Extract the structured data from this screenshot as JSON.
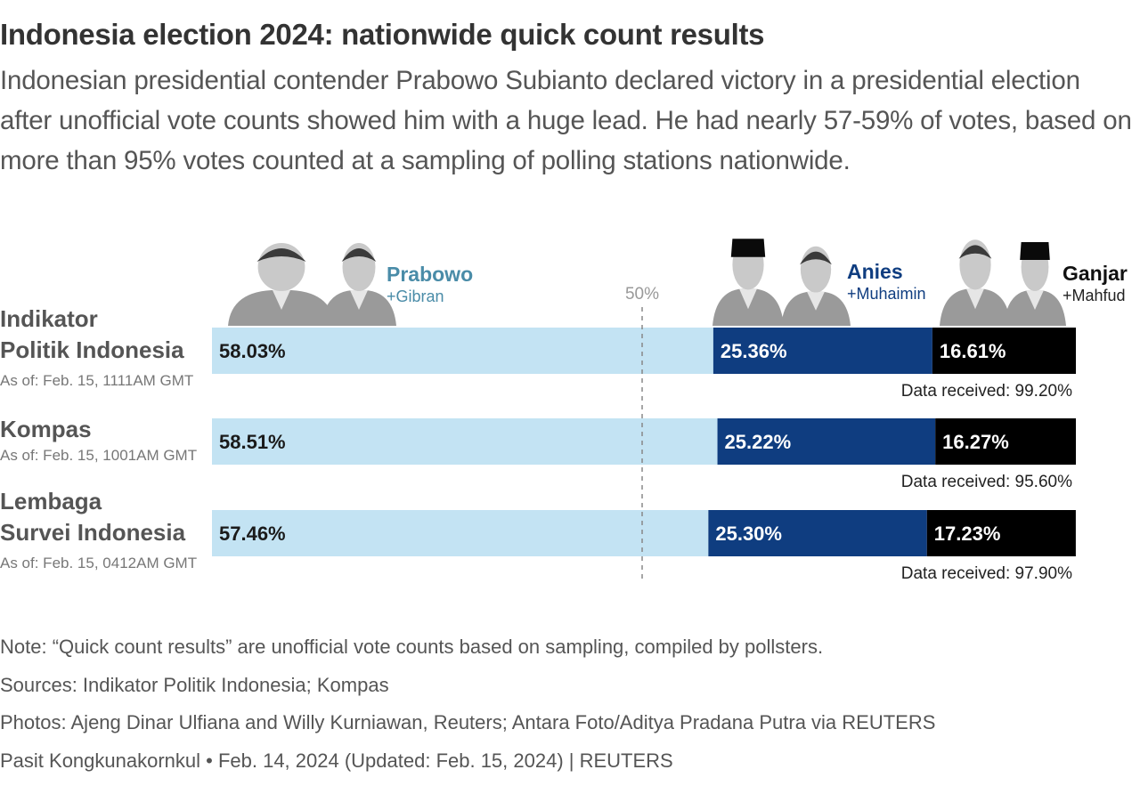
{
  "title": "Indonesia election 2024: nationwide quick count results",
  "subtitle": "Indonesian presidential contender Prabowo Subianto declared victory in a presidential election after unofficial vote counts showed him with a huge lead. He had nearly 57-59% of votes, based on more than 95% votes counted at a sampling of polling stations nationwide.",
  "notes": [
    "Note: “Quick count results” are unofficial vote counts based on sampling, compiled by pollsters.",
    "Sources: Indikator Politik Indonesia; Kompas",
    "Photos: Ajeng Dinar Ulfiana and Willy Kurniawan, Reuters; Antara Foto/Aditya Pradana Putra via REUTERS",
    "Pasit Kongkunakornkul • Feb. 14, 2024 (Updated: Feb. 15, 2024) | REUTERS"
  ],
  "colors": {
    "prabowo": "#c3e3f3",
    "anies": "#0f3d80",
    "ganjar": "#000000",
    "prabowo_label": "#4a8ca8",
    "anies_label": "#0f3d80",
    "ganjar_label": "#111111"
  },
  "chart_data": {
    "type": "bar",
    "orientation": "horizontal",
    "stacked": true,
    "xlim": [
      0,
      100
    ],
    "reference_line": {
      "value": 50,
      "label": "50%"
    },
    "candidates": [
      {
        "name": "Prabowo",
        "running_mate": "+Gibran",
        "icon": "candidate-photo-icon"
      },
      {
        "name": "Anies",
        "running_mate": "+Muhaimin",
        "icon": "candidate-photo-icon"
      },
      {
        "name": "Ganjar",
        "running_mate": "+Mahfud",
        "icon": "candidate-photo-icon"
      }
    ],
    "categories": [
      "Indikator Politik Indonesia",
      "Kompas",
      "Lembaga Survei Indonesia"
    ],
    "category_lines": [
      [
        "Indikator",
        "Politik Indonesia"
      ],
      [
        "Kompas"
      ],
      [
        "Lembaga",
        "Survei Indonesia"
      ]
    ],
    "as_of": [
      "As of: Feb. 15, 1111AM GMT",
      "As of: Feb. 15, 1001AM GMT",
      "As of: Feb. 15, 0412AM GMT"
    ],
    "data_received": [
      "Data received: 99.20%",
      "Data received: 95.60%",
      "Data received: 97.90%"
    ],
    "series": [
      {
        "name": "Prabowo",
        "values": [
          58.03,
          58.51,
          57.46
        ],
        "labels": [
          "58.03%",
          "58.51%",
          "57.46%"
        ]
      },
      {
        "name": "Anies",
        "values": [
          25.36,
          25.22,
          25.3
        ],
        "labels": [
          "25.36%",
          "25.22%",
          "25.30%"
        ]
      },
      {
        "name": "Ganjar",
        "values": [
          16.61,
          16.27,
          17.23
        ],
        "labels": [
          "16.61%",
          "16.27%",
          "17.23%"
        ]
      }
    ]
  }
}
